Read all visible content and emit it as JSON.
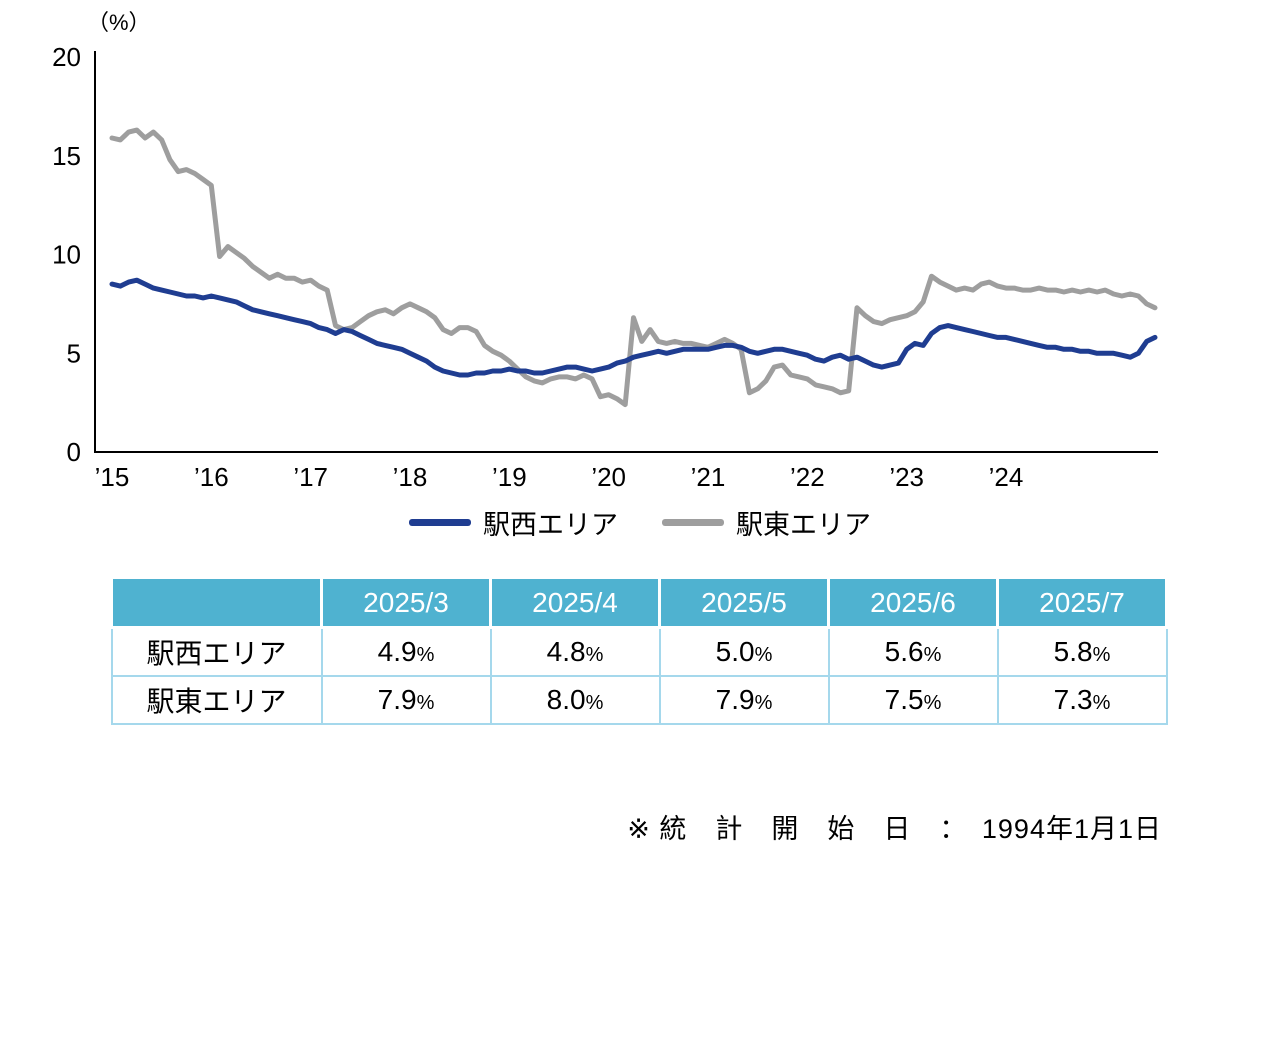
{
  "chart_data": {
    "type": "line",
    "title": "",
    "xlabel": "",
    "ylabel": "（%）",
    "ylim": [
      0,
      20
    ],
    "yticks": [
      0,
      5,
      10,
      15,
      20
    ],
    "grid": false,
    "legend_position": "bottom-center",
    "x_start": "2015-01",
    "x_end": "2025-07",
    "x_interval": "monthly",
    "x_tick_labels": [
      "’15",
      "’16",
      "’17",
      "’18",
      "’19",
      "’20",
      "’21",
      "’22",
      "’23",
      "’24"
    ],
    "x_tick_every_months": 12,
    "series": [
      {
        "name": "駅西エリア",
        "color": "#1f3d91",
        "values": [
          8.5,
          8.4,
          8.6,
          8.7,
          8.5,
          8.3,
          8.2,
          8.1,
          8.0,
          7.9,
          7.9,
          7.8,
          7.9,
          7.8,
          7.7,
          7.6,
          7.4,
          7.2,
          7.1,
          7.0,
          6.9,
          6.8,
          6.7,
          6.6,
          6.5,
          6.3,
          6.2,
          6.0,
          6.2,
          6.1,
          5.9,
          5.7,
          5.5,
          5.4,
          5.3,
          5.2,
          5.0,
          4.8,
          4.6,
          4.3,
          4.1,
          4.0,
          3.9,
          3.9,
          4.0,
          4.0,
          4.1,
          4.1,
          4.2,
          4.1,
          4.1,
          4.0,
          4.0,
          4.1,
          4.2,
          4.3,
          4.3,
          4.2,
          4.1,
          4.2,
          4.3,
          4.5,
          4.6,
          4.8,
          4.9,
          5.0,
          5.1,
          5.0,
          5.1,
          5.2,
          5.2,
          5.2,
          5.2,
          5.3,
          5.4,
          5.4,
          5.3,
          5.1,
          5.0,
          5.1,
          5.2,
          5.2,
          5.1,
          5.0,
          4.9,
          4.7,
          4.6,
          4.8,
          4.9,
          4.7,
          4.8,
          4.6,
          4.4,
          4.3,
          4.4,
          4.5,
          5.2,
          5.5,
          5.4,
          6.0,
          6.3,
          6.4,
          6.3,
          6.2,
          6.1,
          6.0,
          5.9,
          5.8,
          5.8,
          5.7,
          5.6,
          5.5,
          5.4,
          5.3,
          5.3,
          5.2,
          5.2,
          5.1,
          5.1,
          5.0,
          5.0,
          5.0,
          4.9,
          4.8,
          5.0,
          5.6,
          5.8
        ]
      },
      {
        "name": "駅東エリア",
        "color": "#9e9e9e",
        "values": [
          15.9,
          15.8,
          16.2,
          16.3,
          15.9,
          16.2,
          15.8,
          14.8,
          14.2,
          14.3,
          14.1,
          13.8,
          13.5,
          9.9,
          10.4,
          10.1,
          9.8,
          9.4,
          9.1,
          8.8,
          9.0,
          8.8,
          8.8,
          8.6,
          8.7,
          8.4,
          8.2,
          6.4,
          6.2,
          6.3,
          6.6,
          6.9,
          7.1,
          7.2,
          7.0,
          7.3,
          7.5,
          7.3,
          7.1,
          6.8,
          6.2,
          6.0,
          6.3,
          6.3,
          6.1,
          5.4,
          5.1,
          4.9,
          4.6,
          4.2,
          3.8,
          3.6,
          3.5,
          3.7,
          3.8,
          3.8,
          3.7,
          3.9,
          3.7,
          2.8,
          2.9,
          2.7,
          2.4,
          6.8,
          5.6,
          6.2,
          5.6,
          5.5,
          5.6,
          5.5,
          5.5,
          5.4,
          5.3,
          5.5,
          5.7,
          5.5,
          5.2,
          3.0,
          3.2,
          3.6,
          4.3,
          4.4,
          3.9,
          3.8,
          3.7,
          3.4,
          3.3,
          3.2,
          3.0,
          3.1,
          7.3,
          6.9,
          6.6,
          6.5,
          6.7,
          6.8,
          6.9,
          7.1,
          7.6,
          8.9,
          8.6,
          8.4,
          8.2,
          8.3,
          8.2,
          8.5,
          8.6,
          8.4,
          8.3,
          8.3,
          8.2,
          8.2,
          8.3,
          8.2,
          8.2,
          8.1,
          8.2,
          8.1,
          8.2,
          8.1,
          8.2,
          8.0,
          7.9,
          8.0,
          7.9,
          7.5,
          7.3
        ]
      }
    ]
  },
  "table": {
    "header": [
      "",
      "2025/3",
      "2025/4",
      "2025/5",
      "2025/6",
      "2025/7"
    ],
    "unit": "%",
    "rows": [
      {
        "label": "駅西エリア",
        "values": [
          "4.9",
          "4.8",
          "5.0",
          "5.6",
          "5.8"
        ]
      },
      {
        "label": "駅東エリア",
        "values": [
          "7.9",
          "8.0",
          "7.9",
          "7.5",
          "7.3"
        ]
      }
    ]
  },
  "footnote": {
    "text": "※ 統　計　開　始　日　：　1994年1月1日"
  },
  "colors": {
    "series_west": "#1f3d91",
    "series_east": "#9e9e9e",
    "table_header_bg": "#4fb2d0",
    "table_border": "#a5d8ec",
    "axis": "#000000"
  }
}
